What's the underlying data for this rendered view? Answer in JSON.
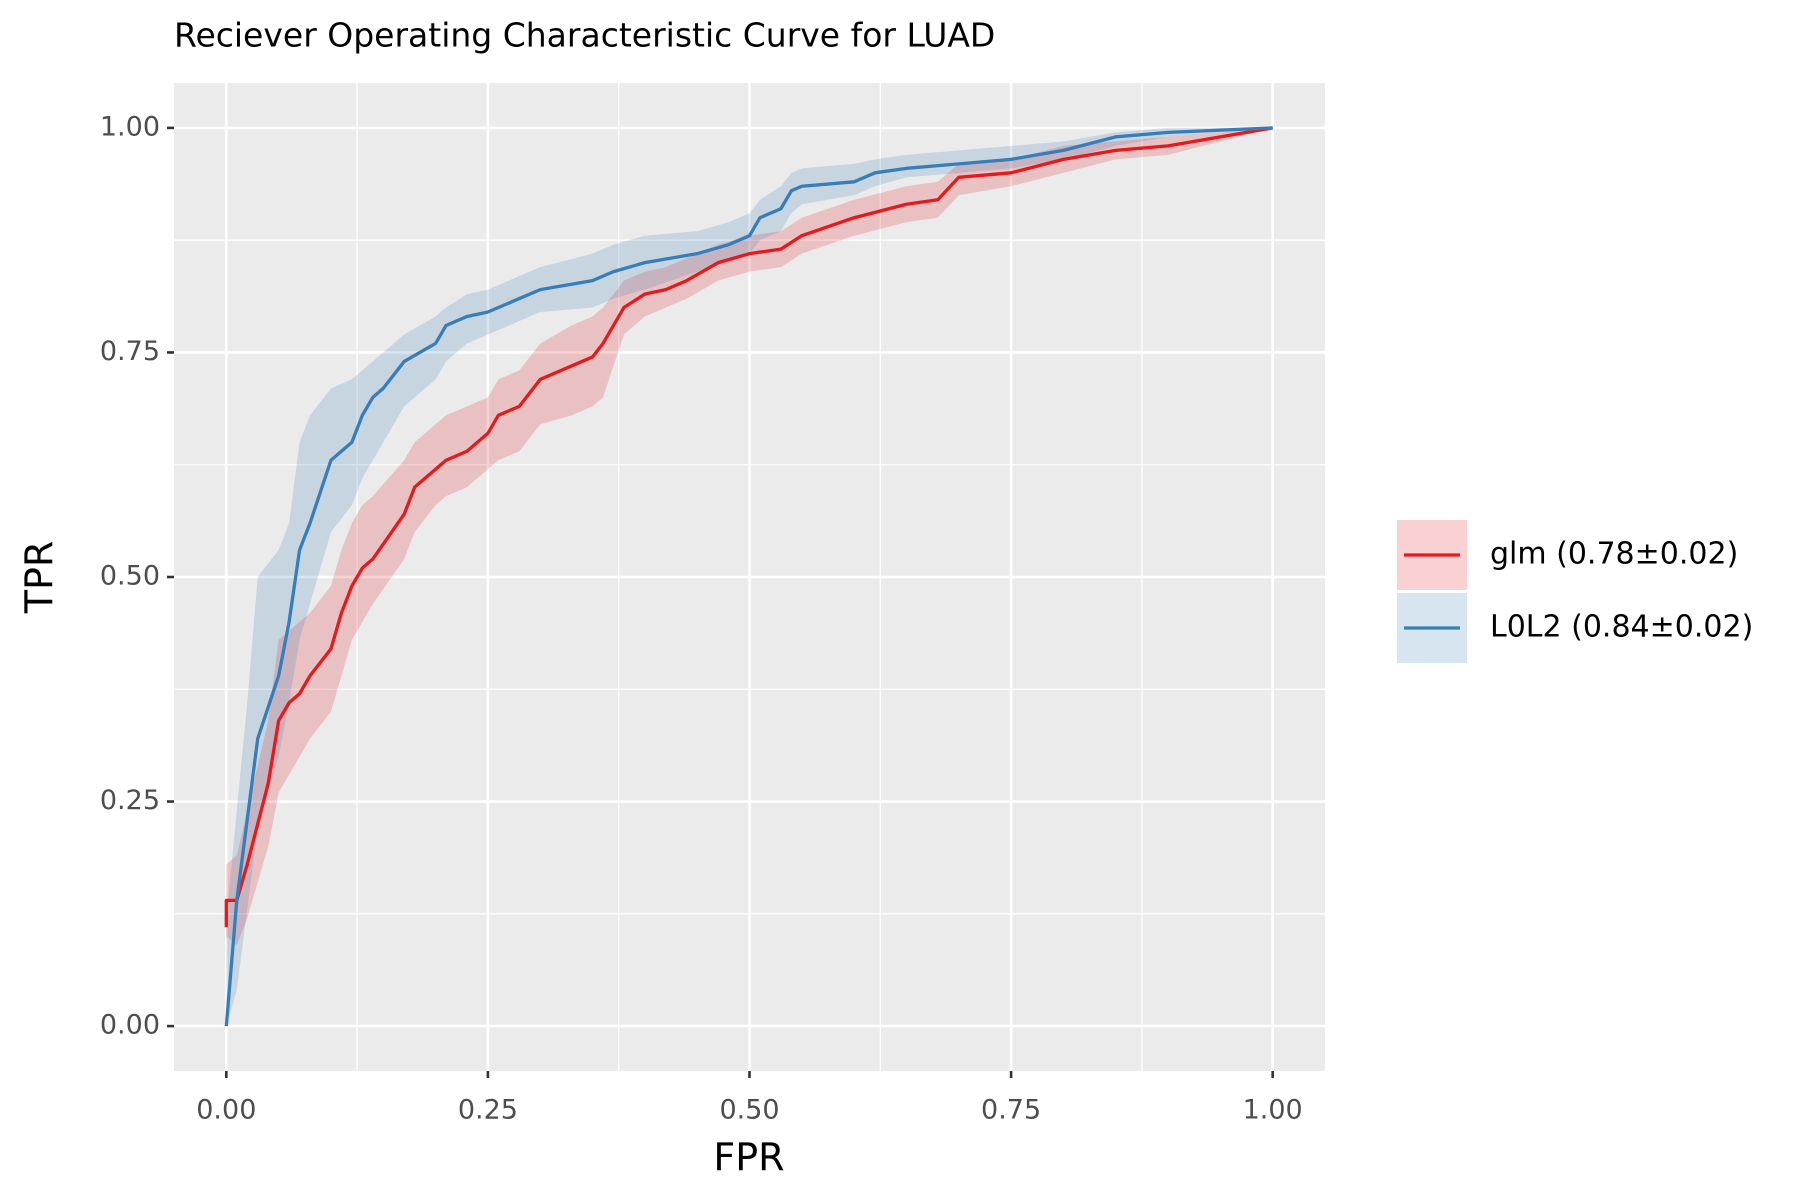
{
  "chart_data": {
    "type": "line",
    "title": "Reciever Operating Characteristic Curve for LUAD",
    "x_label": "FPR",
    "y_label": "TPR",
    "xlim": [
      -0.05,
      1.05
    ],
    "ylim": [
      -0.05,
      1.05
    ],
    "xticks": [
      {
        "value": 0,
        "label": "0.00"
      },
      {
        "value": 0.25,
        "label": "0.25"
      },
      {
        "value": 0.5,
        "label": "0.50"
      },
      {
        "value": 0.75,
        "label": "0.75"
      },
      {
        "value": 1,
        "label": "1.00"
      }
    ],
    "yticks": [
      {
        "value": 0,
        "label": "0.00"
      },
      {
        "value": 0.25,
        "label": "0.25"
      },
      {
        "value": 0.5,
        "label": "0.50"
      },
      {
        "value": 0.75,
        "label": "0.75"
      },
      {
        "value": 1,
        "label": "1.00"
      }
    ],
    "grid": true,
    "series": [
      {
        "name": "glm (0.78±0.02)",
        "color": "#E41A1C",
        "x": [
          0,
          0,
          0.01,
          0.02,
          0.04,
          0.05,
          0.06,
          0.07,
          0.08,
          0.1,
          0.11,
          0.12,
          0.13,
          0.14,
          0.17,
          0.18,
          0.2,
          0.21,
          0.23,
          0.25,
          0.26,
          0.28,
          0.3,
          0.33,
          0.35,
          0.36,
          0.38,
          0.4,
          0.42,
          0.44,
          0.47,
          0.5,
          0.53,
          0.55,
          0.6,
          0.65,
          0.68,
          0.7,
          0.75,
          0.8,
          0.85,
          0.9,
          0.95,
          1.0
        ],
        "values": [
          0.11,
          0.14,
          0.14,
          0.18,
          0.27,
          0.34,
          0.36,
          0.37,
          0.39,
          0.42,
          0.46,
          0.49,
          0.51,
          0.52,
          0.57,
          0.6,
          0.62,
          0.63,
          0.64,
          0.66,
          0.68,
          0.69,
          0.72,
          0.735,
          0.745,
          0.76,
          0.8,
          0.815,
          0.82,
          0.83,
          0.85,
          0.86,
          0.865,
          0.88,
          0.9,
          0.915,
          0.92,
          0.945,
          0.95,
          0.965,
          0.975,
          0.98,
          0.99,
          1.0
        ],
        "lower": [
          0.09,
          0.1,
          0.09,
          0.12,
          0.2,
          0.26,
          0.28,
          0.3,
          0.32,
          0.35,
          0.39,
          0.43,
          0.45,
          0.47,
          0.52,
          0.55,
          0.58,
          0.59,
          0.6,
          0.62,
          0.63,
          0.64,
          0.67,
          0.68,
          0.69,
          0.7,
          0.77,
          0.79,
          0.8,
          0.81,
          0.83,
          0.84,
          0.845,
          0.86,
          0.88,
          0.895,
          0.9,
          0.925,
          0.935,
          0.95,
          0.965,
          0.97,
          0.985,
          1.0
        ],
        "upper": [
          0.14,
          0.18,
          0.19,
          0.24,
          0.34,
          0.43,
          0.44,
          0.45,
          0.46,
          0.49,
          0.53,
          0.56,
          0.58,
          0.59,
          0.63,
          0.65,
          0.67,
          0.68,
          0.69,
          0.7,
          0.72,
          0.73,
          0.76,
          0.78,
          0.79,
          0.8,
          0.83,
          0.84,
          0.845,
          0.855,
          0.87,
          0.88,
          0.885,
          0.9,
          0.92,
          0.935,
          0.94,
          0.96,
          0.965,
          0.98,
          0.985,
          0.99,
          0.995,
          1.0
        ]
      },
      {
        "name": "L0L2 (0.84±0.02)",
        "color": "#377EB8",
        "x": [
          0,
          0.01,
          0.02,
          0.03,
          0.05,
          0.06,
          0.07,
          0.08,
          0.1,
          0.12,
          0.13,
          0.14,
          0.15,
          0.17,
          0.2,
          0.21,
          0.23,
          0.25,
          0.28,
          0.3,
          0.35,
          0.37,
          0.4,
          0.45,
          0.48,
          0.5,
          0.51,
          0.53,
          0.54,
          0.55,
          0.6,
          0.62,
          0.65,
          0.7,
          0.75,
          0.8,
          0.85,
          0.9,
          1.0
        ],
        "values": [
          0,
          0.14,
          0.23,
          0.32,
          0.39,
          0.45,
          0.53,
          0.56,
          0.63,
          0.65,
          0.68,
          0.7,
          0.71,
          0.74,
          0.76,
          0.78,
          0.79,
          0.795,
          0.81,
          0.82,
          0.83,
          0.84,
          0.85,
          0.86,
          0.87,
          0.88,
          0.9,
          0.91,
          0.93,
          0.935,
          0.94,
          0.95,
          0.955,
          0.96,
          0.965,
          0.975,
          0.99,
          0.995,
          1.0
        ],
        "lower": [
          0,
          0.04,
          0.13,
          0.22,
          0.3,
          0.36,
          0.43,
          0.47,
          0.55,
          0.58,
          0.61,
          0.63,
          0.65,
          0.69,
          0.72,
          0.74,
          0.76,
          0.77,
          0.785,
          0.795,
          0.8,
          0.81,
          0.82,
          0.84,
          0.85,
          0.86,
          0.875,
          0.885,
          0.905,
          0.915,
          0.925,
          0.935,
          0.945,
          0.95,
          0.955,
          0.965,
          0.98,
          0.99,
          1.0
        ],
        "upper": [
          0.12,
          0.24,
          0.36,
          0.5,
          0.53,
          0.56,
          0.65,
          0.68,
          0.71,
          0.72,
          0.73,
          0.74,
          0.75,
          0.77,
          0.79,
          0.8,
          0.815,
          0.82,
          0.835,
          0.845,
          0.86,
          0.87,
          0.88,
          0.885,
          0.895,
          0.905,
          0.92,
          0.935,
          0.95,
          0.955,
          0.96,
          0.965,
          0.97,
          0.975,
          0.98,
          0.985,
          0.995,
          1.0,
          1.0
        ]
      }
    ]
  }
}
